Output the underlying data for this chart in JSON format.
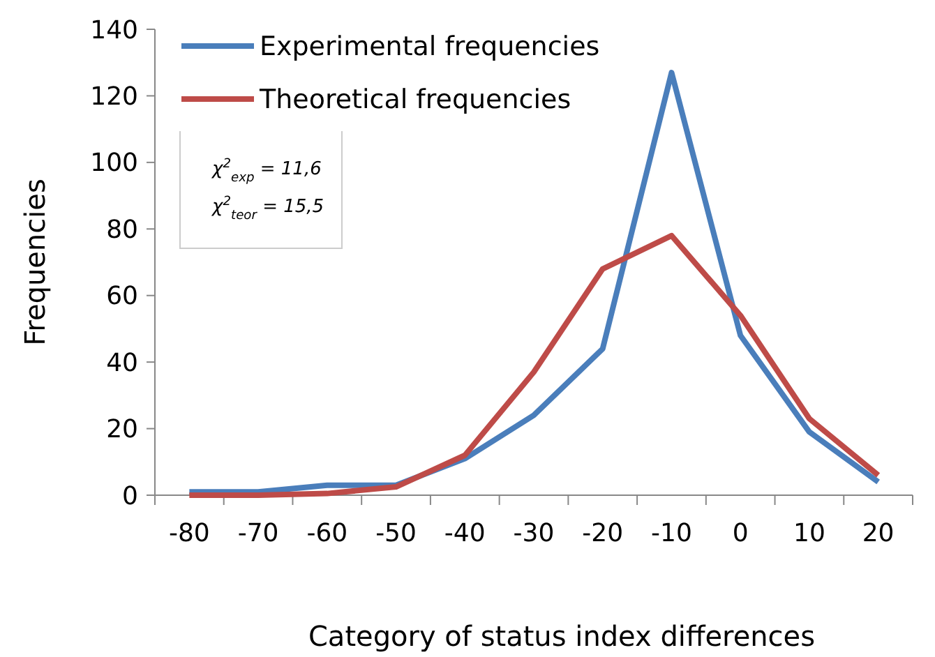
{
  "chart_data": {
    "type": "line",
    "xlabel": "Category of status index differences",
    "ylabel": "Frequencies",
    "categories": [
      "-80",
      "-70",
      "-60",
      "-50",
      "-40",
      "-30",
      "-20",
      "-10",
      "0",
      "10",
      "20"
    ],
    "series": [
      {
        "name": "Experimental frequencies",
        "color": "#4a7ebb",
        "values": [
          1,
          1,
          3,
          3,
          11,
          24,
          44,
          127,
          48,
          19,
          4
        ]
      },
      {
        "name": "Theoretical frequencies",
        "color": "#be4b48",
        "values": [
          0,
          0,
          0.5,
          2.5,
          12,
          37,
          68,
          78,
          54,
          23,
          6
        ]
      }
    ],
    "ylim": [
      0,
      140
    ],
    "yticks": [
      0,
      20,
      40,
      60,
      80,
      100,
      120,
      140
    ],
    "annotations": [
      "χ$^{2}$$_{exp}$ = 11,6",
      "χ$^{2}$$_{teor}$ = 15,5"
    ],
    "grid": false,
    "legend": "top left",
    "marker": "none",
    "line_style": "solid"
  }
}
